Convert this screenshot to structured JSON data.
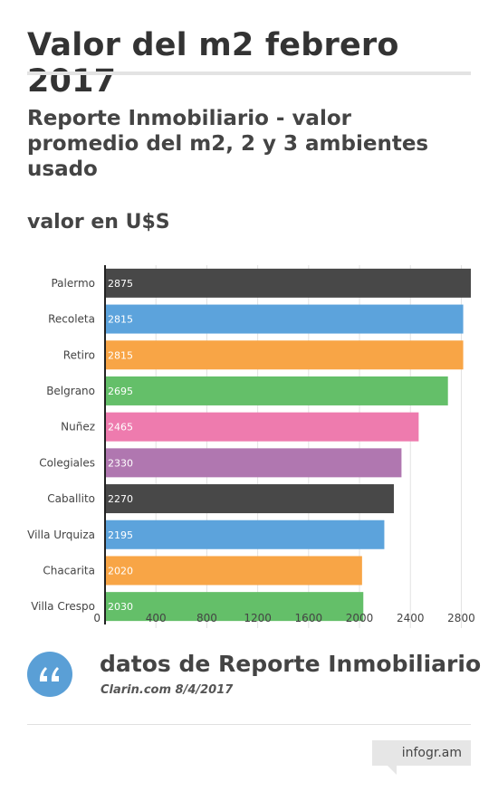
{
  "header": {
    "title": "Valor del m2 febrero 2017",
    "subtitle": "Reporte Inmobiliario - valor promedio del m2, 2 y 3 ambientes usado",
    "unit_label": "valor en U$S"
  },
  "source": {
    "title": "datos de Reporte Inmobiliario",
    "subtitle": "Clarin.com 8/4/2017",
    "icon": "quote-icon"
  },
  "brand": {
    "label": "infogr.am"
  },
  "chart_data": {
    "type": "bar",
    "orientation": "horizontal",
    "categories": [
      "Palermo",
      "Recoleta",
      "Retiro",
      "Belgrano",
      "Nuñez",
      "Colegiales",
      "Caballito",
      "Villa Urquiza",
      "Chacarita",
      "Villa Crespo"
    ],
    "values": [
      2875,
      2815,
      2815,
      2695,
      2465,
      2330,
      2270,
      2195,
      2020,
      2030
    ],
    "colors": [
      "#484848",
      "#5ca3dc",
      "#f8a546",
      "#64bf69",
      "#ee7bae",
      "#b077b0",
      "#484848",
      "#5ca3dc",
      "#f8a546",
      "#64bf69"
    ],
    "xlim": [
      0,
      2875
    ],
    "xticks": [
      0,
      400,
      800,
      1200,
      1600,
      2000,
      2400,
      2800
    ],
    "grid": true,
    "data_labels": true,
    "title": "",
    "xlabel": "",
    "ylabel": ""
  }
}
